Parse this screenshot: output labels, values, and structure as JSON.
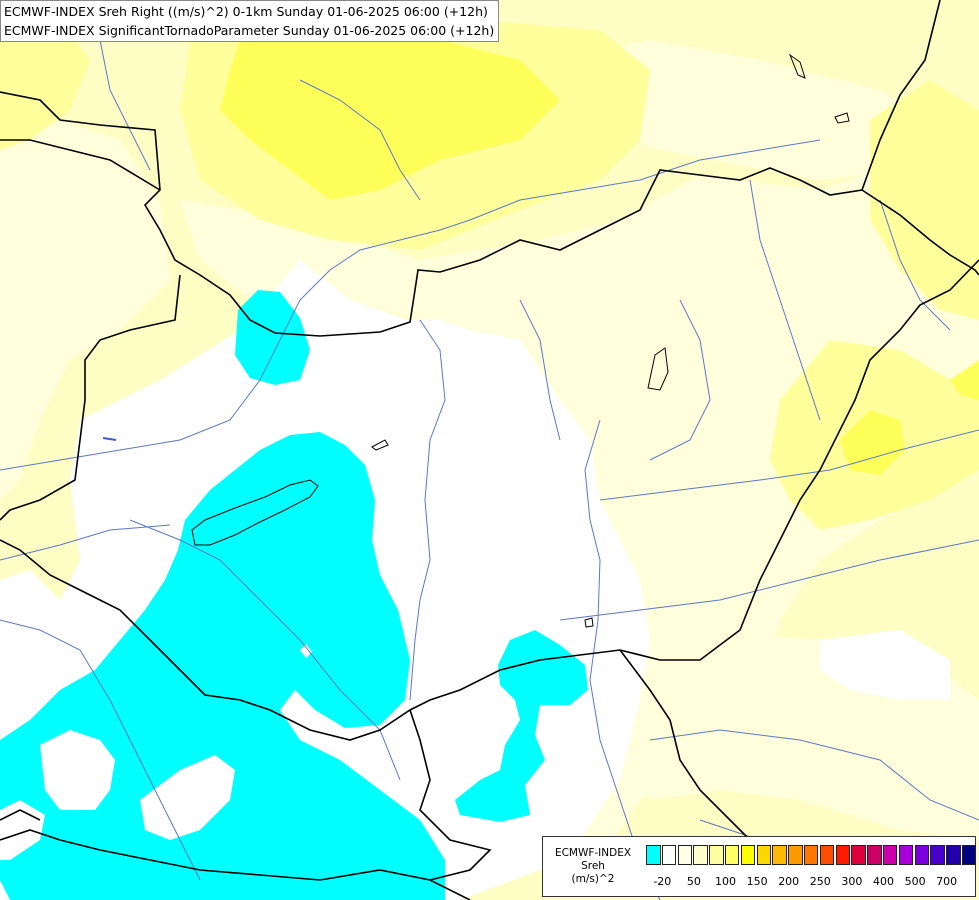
{
  "header": {
    "line1": "ECMWF-INDEX Sreh Right ((m/s)^2) 0-1km Sunday 01-06-2025 06:00 (+12h)",
    "line2": "ECMWF-INDEX SignificantTornadoParameter Sunday 01-06-2025 06:00 (+12h)"
  },
  "legend": {
    "title": "ECMWF-INDEX",
    "variable": "Sreh",
    "unit": "(m/s)^2",
    "colors": [
      "#00ffff",
      "#ffffff",
      "#ffffe6",
      "#ffffcc",
      "#ffffa0",
      "#ffff66",
      "#ffff00",
      "#ffd700",
      "#ffb900",
      "#ff9900",
      "#ff7700",
      "#ff4c00",
      "#ff1a00",
      "#e0003c",
      "#cc0066",
      "#cc00aa",
      "#aa00dd",
      "#7a00dd",
      "#4a00cc",
      "#2000aa",
      "#000080"
    ],
    "ticks": [
      {
        "label": "-20",
        "index": 1
      },
      {
        "label": "50",
        "index": 3
      },
      {
        "label": "100",
        "index": 5
      },
      {
        "label": "150",
        "index": 7
      },
      {
        "label": "200",
        "index": 9
      },
      {
        "label": "250",
        "index": 11
      },
      {
        "label": "300",
        "index": 13
      },
      {
        "label": "400",
        "index": 15
      },
      {
        "label": "500",
        "index": 17
      },
      {
        "label": "700",
        "index": 19
      }
    ]
  },
  "map_colors": {
    "background": "#fefec4",
    "pale": "#ffffdc",
    "mid_yellow": "#ffff9c",
    "bright_yellow": "#ffff5a",
    "white": "#ffffff",
    "cyan": "#00ffff",
    "river": "#5a78c8",
    "border": "#000000"
  }
}
